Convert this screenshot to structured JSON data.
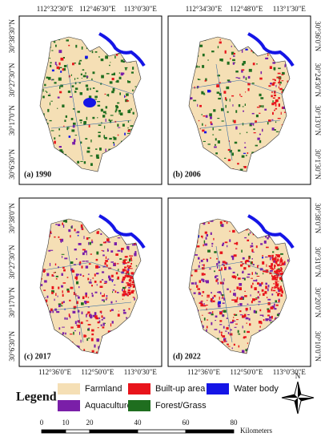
{
  "panels": [
    {
      "label": "(a) 1990",
      "top_labels": [
        "112°32'30\"E",
        "112°46'30\"E",
        "113°0'30\"E"
      ],
      "left_labels": [
        "30°38'30\"N",
        "30°27'30\"N",
        "30°17'0\"N",
        "30°6'30\"N"
      ]
    },
    {
      "label": "(b) 2006",
      "top_labels": [
        "112°34'30\"E",
        "112°48'0\"E",
        "113°1'30\"E"
      ],
      "right_labels": [
        "30°36'0\"N",
        "30°24'30\"N",
        "30°13'0\"N",
        "30°1'30\"N"
      ]
    },
    {
      "label": "(c) 2017",
      "left_labels": [
        "30°38'0\"N",
        "30°27'30\"N",
        "30°17'0\"N",
        "30°6'30\"N"
      ],
      "bottom_labels": [
        "112°36'0\"E",
        "112°50'0\"E",
        "113°0'30\"E"
      ]
    },
    {
      "label": "(d) 2022",
      "right_labels": [
        "30°38'0\"N",
        "30°31'0\"N",
        "30°20'0\"N",
        "30°10'0\"N"
      ],
      "bottom_labels": [
        "112°36'0\"E",
        "112°50'0\"E",
        "113°0'30\"E"
      ]
    }
  ],
  "legend": {
    "title": "Legend",
    "items": [
      {
        "label": "Farmland",
        "color": "#f5dfb5"
      },
      {
        "label": "Built-up area",
        "color": "#e8141b"
      },
      {
        "label": "Water body",
        "color": "#1515e6"
      },
      {
        "label": "Aquaculture",
        "color": "#7a1fa8"
      },
      {
        "label": "Forest/Grass",
        "color": "#1f6e1f"
      }
    ]
  },
  "scale_bar": {
    "ticks": [
      0,
      10,
      20,
      40,
      60,
      80
    ],
    "unit": "Kilometers"
  },
  "north_arrow": "N"
}
